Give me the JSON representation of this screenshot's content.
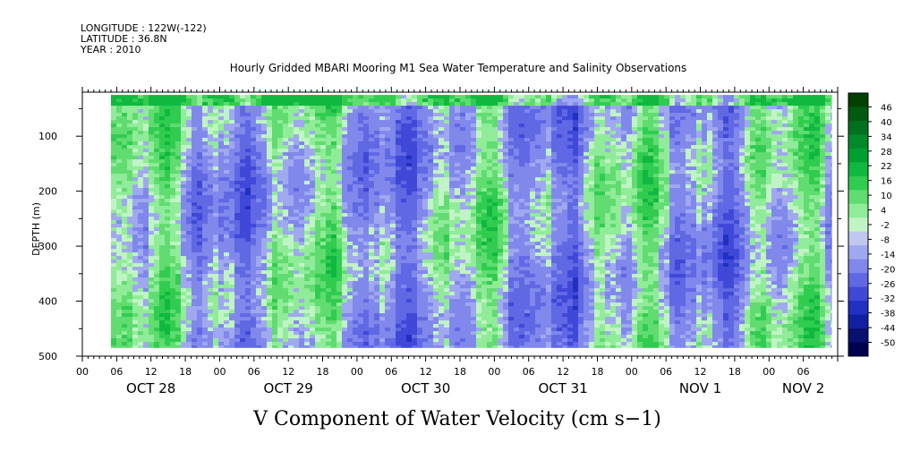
{
  "header": {
    "longitude": "LONGITUDE : 122W(-122)",
    "latitude": "LATITUDE : 36.8N",
    "year": "YEAR : 2010"
  },
  "chart_data": {
    "type": "heatmap",
    "title": "Hourly Gridded MBARI Mooring M1 Sea Water Temperature and Salinity Observations",
    "xlabel": "V Component of Water Velocity (cm s−1)",
    "ylabel": "DEPTH (m)",
    "y_axis": {
      "ticks": [
        100,
        200,
        300,
        400,
        500
      ],
      "tick_labels": [
        "100",
        "200",
        "300",
        "400",
        "500"
      ],
      "range": [
        20,
        500
      ],
      "inverted": true
    },
    "x_axis": {
      "range_hours": [
        0,
        132
      ],
      "hour_tick_labels": [
        "00",
        "06",
        "12",
        "18",
        "00",
        "06",
        "12",
        "18",
        "00",
        "06",
        "12",
        "18",
        "00",
        "06",
        "12",
        "18",
        "00",
        "06",
        "12",
        "18",
        "00",
        "06"
      ],
      "day_labels": [
        {
          "label": "OCT 28",
          "hour": 12
        },
        {
          "label": "OCT 29",
          "hour": 36
        },
        {
          "label": "OCT 30",
          "hour": 60
        },
        {
          "label": "OCT 31",
          "hour": 84
        },
        {
          "label": "NOV  1",
          "hour": 108
        },
        {
          "label": "NOV  2",
          "hour": 126
        }
      ]
    },
    "data_extent": {
      "start_hour": 5,
      "end_hour": 131,
      "depth_top": 25,
      "depth_bottom": 485
    },
    "colorbar": {
      "labels": [
        "46",
        "40",
        "34",
        "28",
        "22",
        "16",
        "10",
        "4",
        "-2",
        "-8",
        "-14",
        "-20",
        "-26",
        "-32",
        "-38",
        "-44",
        "-50"
      ],
      "colors": [
        "#004000",
        "#005a10",
        "#007020",
        "#008a2a",
        "#00a030",
        "#10b840",
        "#30cc50",
        "#60dc70",
        "#90ec98",
        "#c0f4c4",
        "#c0c8f0",
        "#a0a8f0",
        "#8088ec",
        "#6068e4",
        "#4048d8",
        "#2030c0",
        "#1020a0",
        "#081070",
        "#000050"
      ]
    },
    "grid": false,
    "legend": "right colorbar"
  }
}
